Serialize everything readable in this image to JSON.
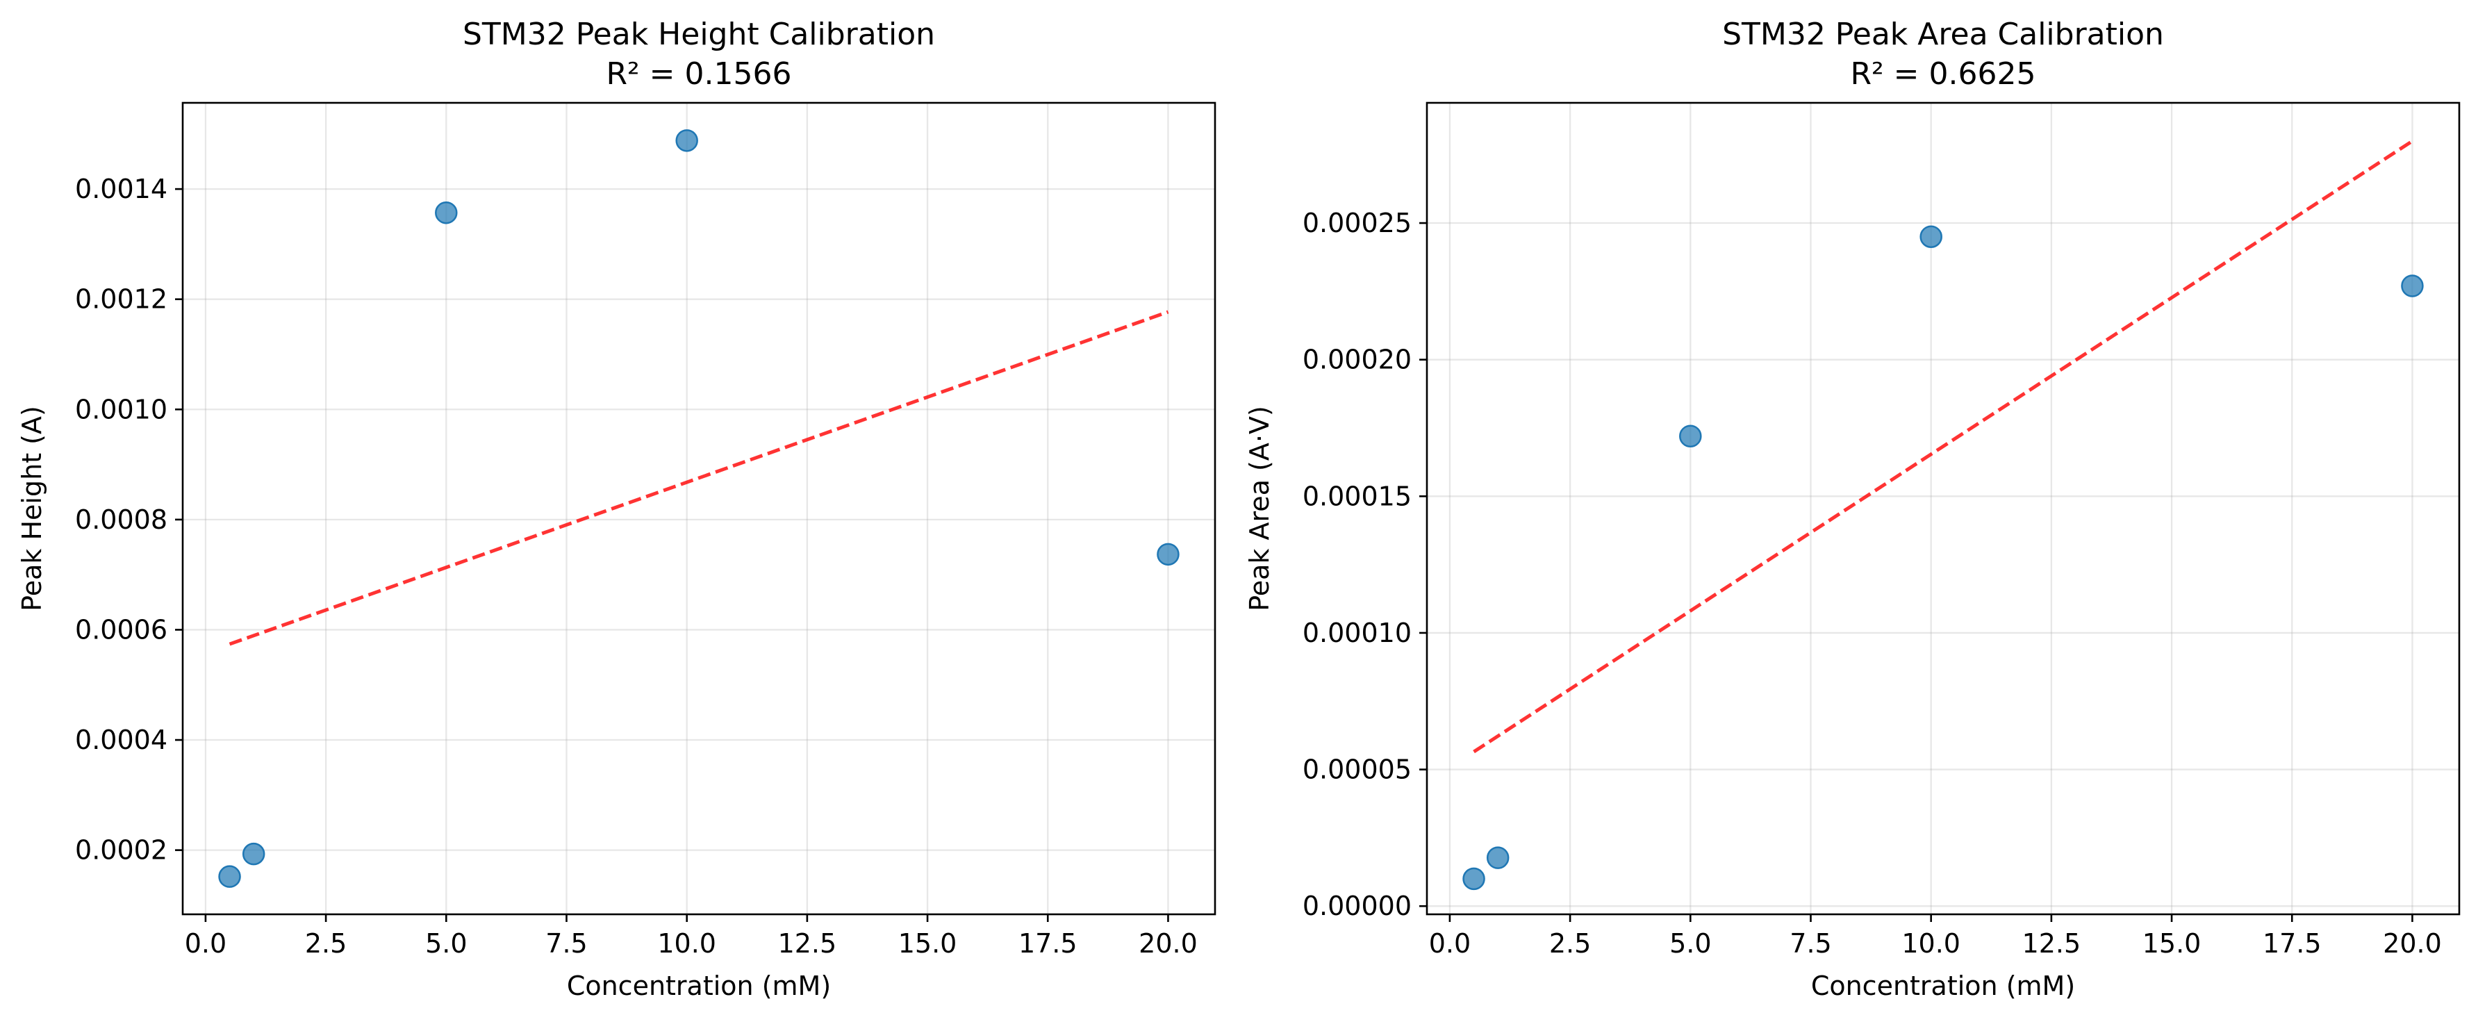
{
  "chart_data": [
    {
      "type": "scatter",
      "title": "STM32 Peak Height Calibration",
      "subtitle": "R² = 0.1566",
      "xlabel": "Concentration (mM)",
      "ylabel": "Peak Height (A)",
      "xlim": [
        -0.475,
        20.975
      ],
      "ylim": [
        8.35e-05,
        0.0015565
      ],
      "xticks": [
        0.0,
        2.5,
        5.0,
        7.5,
        10.0,
        12.5,
        15.0,
        17.5,
        20.0
      ],
      "xtick_labels": [
        "0.0",
        "2.5",
        "5.0",
        "7.5",
        "10.0",
        "12.5",
        "15.0",
        "17.5",
        "20.0"
      ],
      "yticks": [
        0.0002,
        0.0004,
        0.0006,
        0.0008,
        0.001,
        0.0012,
        0.0014
      ],
      "ytick_labels": [
        "0.0002",
        "0.0004",
        "0.0006",
        "0.0008",
        "0.0010",
        "0.0012",
        "0.0014"
      ],
      "grid": true,
      "points": [
        {
          "x": 0.5,
          "y": 0.000152
        },
        {
          "x": 1.0,
          "y": 0.000193
        },
        {
          "x": 5.0,
          "y": 0.001357
        },
        {
          "x": 10.0,
          "y": 0.001488
        },
        {
          "x": 20.0,
          "y": 0.000737
        }
      ],
      "fit_line": {
        "x": [
          0.5,
          20.0
        ],
        "y": [
          0.000574,
          0.001177
        ]
      },
      "marker_color": "#1f77b4",
      "fit_color": "#ff0000"
    },
    {
      "type": "scatter",
      "title": "STM32 Peak Area Calibration",
      "subtitle": "R² = 0.6625",
      "xlabel": "Concentration (mM)",
      "ylabel": "Peak Area (A·V)",
      "xlim": [
        -0.475,
        20.975
      ],
      "ylim": [
        -3e-06,
        0.000294
      ],
      "xticks": [
        0.0,
        2.5,
        5.0,
        7.5,
        10.0,
        12.5,
        15.0,
        17.5,
        20.0
      ],
      "xtick_labels": [
        "0.0",
        "2.5",
        "5.0",
        "7.5",
        "10.0",
        "12.5",
        "15.0",
        "17.5",
        "20.0"
      ],
      "yticks": [
        0.0,
        5e-05,
        0.0001,
        0.00015,
        0.0002,
        0.00025
      ],
      "ytick_labels": [
        "0.00000",
        "0.00005",
        "0.00010",
        "0.00015",
        "0.00020",
        "0.00025"
      ],
      "grid": true,
      "points": [
        {
          "x": 0.5,
          "y": 1e-05
        },
        {
          "x": 1.0,
          "y": 1.77e-05
        },
        {
          "x": 5.0,
          "y": 0.000172
        },
        {
          "x": 10.0,
          "y": 0.000245
        },
        {
          "x": 20.0,
          "y": 0.000227
        }
      ],
      "fit_line": {
        "x": [
          0.5,
          20.0
        ],
        "y": [
          5.65e-05,
          0.00028
        ]
      },
      "marker_color": "#1f77b4",
      "fit_color": "#ff0000"
    }
  ]
}
